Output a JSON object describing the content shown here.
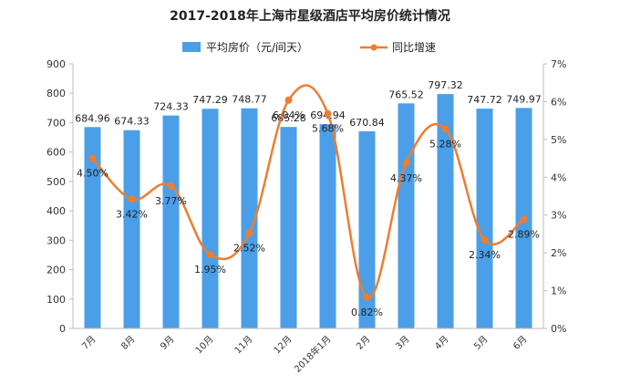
{
  "chart_data": {
    "type": "bar",
    "title": "2017-2018年上海市星级酒店平均房价统计情况",
    "categories": [
      "7月",
      "8月",
      "9月",
      "10月",
      "11月",
      "12月",
      "2018年1月",
      "2月",
      "3月",
      "4月",
      "5月",
      "6月"
    ],
    "series": [
      {
        "name": "平均房价（元/间天）",
        "type": "bar",
        "axis": "left",
        "color": "#4a9fe8",
        "values": [
          684.96,
          674.33,
          724.33,
          747.29,
          748.77,
          685.28,
          694.94,
          670.84,
          765.52,
          797.32,
          747.72,
          749.97
        ],
        "labels": [
          "684.96",
          "674.33",
          "724.33",
          "747.29",
          "748.77",
          "685.28",
          "694.94",
          "670.84",
          "765.52",
          "797.32",
          "747.72",
          "749.97"
        ]
      },
      {
        "name": "同比增速",
        "type": "line",
        "axis": "right",
        "color": "#ed7d31",
        "values": [
          4.5,
          3.42,
          3.77,
          1.95,
          2.52,
          6.04,
          5.68,
          0.82,
          4.37,
          5.28,
          2.34,
          2.89
        ],
        "labels": [
          "4.50%",
          "3.42%",
          "3.77%",
          "1.95%",
          "2.52%",
          "6.04%",
          "5.68%",
          "0.82%",
          "4.37%",
          "5.28%",
          "2.34%",
          "2.89%"
        ]
      }
    ],
    "left_axis": {
      "ylim": [
        0,
        900
      ],
      "ticks": [
        "0",
        "100",
        "200",
        "300",
        "400",
        "500",
        "600",
        "700",
        "800",
        "900"
      ]
    },
    "right_axis": {
      "ylim": [
        0,
        7
      ],
      "ticks": [
        "0%",
        "1%",
        "2%",
        "3%",
        "4%",
        "5%",
        "6%",
        "7%"
      ]
    },
    "grid": false,
    "legend_position": "top-center"
  }
}
